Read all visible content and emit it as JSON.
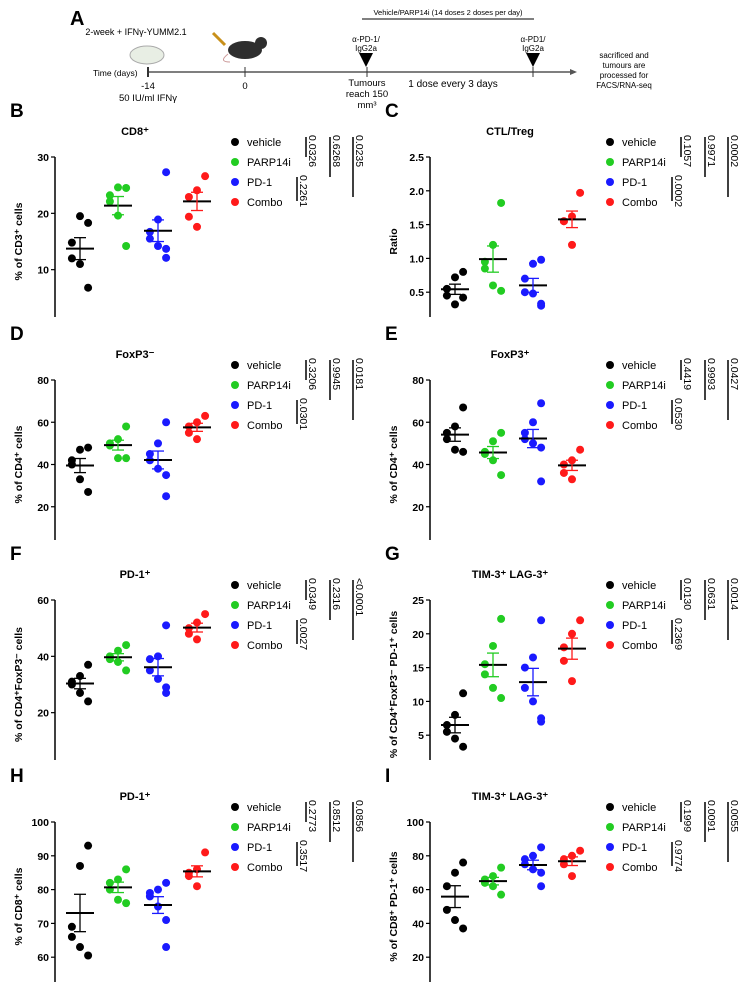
{
  "schematic": {
    "letter": "A",
    "cell_label": "2-week + IFNγ-YUMM2.1",
    "time_label": "Time (days)",
    "t_minus14": "-14",
    "t_minus14_sub": "50 IU/ml IFNγ",
    "t_zero": "0",
    "treatment_bar": "Vehicle/PARP14i (14 doses 2 doses per day)",
    "dose1": [
      "α-PD-1/",
      "IgG2a"
    ],
    "dose2": [
      "α-PD1/",
      "IgG2a"
    ],
    "tumour_label": [
      "Tumours",
      "reach 150",
      "mm³"
    ],
    "interval_label": "1 dose every 3 days",
    "end_label": [
      "sacrificed and",
      "tumours are",
      "processed for",
      "FACS/RNA-seq"
    ]
  },
  "colors": {
    "vehicle": "#000000",
    "PARP14i": "#22cc22",
    "PD-1": "#1a1aff",
    "Combo": "#ff1a1a"
  },
  "chart_data": [
    {
      "letter": "B",
      "type": "scatter",
      "title": "CD8⁺",
      "ylabel": "% of CD3⁺ cells",
      "ylim": [
        0,
        30
      ],
      "yticks": [
        "0",
        "10",
        "20",
        "30"
      ],
      "series": [
        {
          "name": "vehicle",
          "values": [
            18.3,
            19.5,
            14.8,
            12,
            11,
            6.8
          ]
        },
        {
          "name": "PARP14i",
          "values": [
            24.5,
            24.6,
            22.1,
            23.2,
            19.6,
            14.2
          ]
        },
        {
          "name": "PD-1",
          "values": [
            27.3,
            18.9,
            16.7,
            15.5,
            14.2,
            13.7,
            12.1
          ]
        },
        {
          "name": "Combo",
          "values": [
            26.6,
            24.1,
            22.9,
            19.4,
            17.6
          ]
        }
      ],
      "pvalues": {
        "vehicle_vs_PARP14i": "0.0326",
        "vehicle_vs_PD-1": "0.6268",
        "vehicle_vs_Combo": "0.0235",
        "PD-1_vs_Combo": "0.2261"
      }
    },
    {
      "letter": "C",
      "type": "scatter",
      "title": "CTL/Treg",
      "ylabel": "Ratio",
      "ylim": [
        0,
        2.5
      ],
      "yticks": [
        "0.0",
        "0.5",
        "1.0",
        "1.5",
        "2.0",
        "2.5"
      ],
      "series": [
        {
          "name": "vehicle",
          "values": [
            0.8,
            0.72,
            0.55,
            0.45,
            0.32,
            0.42
          ]
        },
        {
          "name": "PARP14i",
          "values": [
            1.82,
            1.2,
            0.95,
            0.85,
            0.6,
            0.52
          ]
        },
        {
          "name": "PD-1",
          "values": [
            0.98,
            0.92,
            0.7,
            0.5,
            0.48,
            0.33,
            0.3
          ]
        },
        {
          "name": "Combo",
          "values": [
            1.97,
            1.62,
            1.55,
            1.55,
            1.2
          ]
        }
      ],
      "pvalues": {
        "vehicle_vs_PARP14i": "0.1057",
        "vehicle_vs_PD-1": "0.9971",
        "vehicle_vs_Combo": "0.0002",
        "PD-1_vs_Combo": "0.0002"
      }
    },
    {
      "letter": "D",
      "type": "scatter",
      "title": "FoxP3⁻",
      "ylabel": "% of CD4⁺ cells",
      "ylim": [
        0,
        80
      ],
      "yticks": [
        "0",
        "20",
        "40",
        "60",
        "80"
      ],
      "series": [
        {
          "name": "vehicle",
          "values": [
            48,
            47,
            42,
            40,
            33,
            27
          ]
        },
        {
          "name": "PARP14i",
          "values": [
            58,
            52,
            49,
            50,
            43,
            43
          ]
        },
        {
          "name": "PD-1",
          "values": [
            60,
            50,
            45,
            42,
            38,
            35,
            25
          ]
        },
        {
          "name": "Combo",
          "values": [
            63,
            60,
            58,
            55,
            52
          ]
        }
      ],
      "pvalues": {
        "vehicle_vs_PARP14i": "0.3206",
        "vehicle_vs_PD-1": "0.9945",
        "vehicle_vs_Combo": "0.0181",
        "PD-1_vs_Combo": "0.0301"
      }
    },
    {
      "letter": "E",
      "type": "scatter",
      "title": "FoxP3⁺",
      "ylabel": "% of CD4⁺ cells",
      "ylim": [
        0,
        80
      ],
      "yticks": [
        "0",
        "20",
        "40",
        "60",
        "80"
      ],
      "series": [
        {
          "name": "vehicle",
          "values": [
            67,
            58,
            55,
            52,
            47,
            46
          ]
        },
        {
          "name": "PARP14i",
          "values": [
            55,
            51,
            46,
            45,
            42,
            35
          ]
        },
        {
          "name": "PD-1",
          "values": [
            69,
            60,
            55,
            52,
            50,
            48,
            32
          ]
        },
        {
          "name": "Combo",
          "values": [
            47,
            42,
            40,
            36,
            33
          ]
        }
      ],
      "pvalues": {
        "vehicle_vs_PARP14i": "0.4419",
        "vehicle_vs_PD-1": "0.9993",
        "vehicle_vs_Combo": "0.0427",
        "PD-1_vs_Combo": "0.0530"
      }
    },
    {
      "letter": "F",
      "type": "scatter",
      "title": "PD-1⁺",
      "ylabel": "% of CD4⁺FoxP3⁻ cells",
      "ylim": [
        0,
        60
      ],
      "yticks": [
        "0",
        "20",
        "40",
        "60"
      ],
      "series": [
        {
          "name": "vehicle",
          "values": [
            37,
            33,
            31,
            30,
            27,
            24
          ]
        },
        {
          "name": "PARP14i",
          "values": [
            44,
            42,
            40,
            39,
            38,
            35
          ]
        },
        {
          "name": "PD-1",
          "values": [
            51,
            40,
            39,
            35,
            32,
            29,
            27
          ]
        },
        {
          "name": "Combo",
          "values": [
            55,
            52,
            50,
            48,
            46
          ]
        }
      ],
      "pvalues": {
        "vehicle_vs_PARP14i": "0.0349",
        "vehicle_vs_PD-1": "0.2316",
        "vehicle_vs_Combo": "<0.0001",
        "PD-1_vs_Combo": "0.0027"
      }
    },
    {
      "letter": "G",
      "type": "scatter",
      "title": "TIM-3⁺ LAG-3⁺",
      "ylabel": "% of CD4⁺FoxP3⁻ PD-1⁺ cells",
      "ylim": [
        0,
        25
      ],
      "yticks": [
        "0",
        "5",
        "10",
        "15",
        "20",
        "25"
      ],
      "series": [
        {
          "name": "vehicle",
          "values": [
            11.2,
            8,
            6.5,
            5.5,
            4.5,
            3.3
          ]
        },
        {
          "name": "PARP14i",
          "values": [
            22.2,
            18.2,
            15.5,
            14,
            12,
            10.5
          ]
        },
        {
          "name": "PD-1",
          "values": [
            22,
            16.5,
            15,
            12,
            10,
            7.5,
            7
          ]
        },
        {
          "name": "Combo",
          "values": [
            22,
            20,
            18,
            16,
            13
          ]
        }
      ],
      "pvalues": {
        "vehicle_vs_PARP14i": "0.0130",
        "vehicle_vs_PD-1": "0.0631",
        "vehicle_vs_Combo": "0.0014",
        "PD-1_vs_Combo": "0.2369"
      }
    },
    {
      "letter": "H",
      "type": "scatter",
      "title": "PD-1⁺",
      "ylabel": "% of CD8⁺ cells",
      "ylim": [
        50,
        100
      ],
      "yticks": [
        "50",
        "60",
        "70",
        "80",
        "90",
        "100"
      ],
      "series": [
        {
          "name": "vehicle",
          "values": [
            93,
            87,
            69,
            66,
            63,
            60.5
          ]
        },
        {
          "name": "PARP14i",
          "values": [
            86,
            83,
            82,
            80,
            77,
            76
          ]
        },
        {
          "name": "PD-1",
          "values": [
            82,
            80,
            79,
            78,
            75,
            71,
            63
          ]
        },
        {
          "name": "Combo",
          "values": [
            91,
            86,
            85,
            84,
            81
          ]
        }
      ],
      "pvalues": {
        "vehicle_vs_PARP14i": "0.2773",
        "vehicle_vs_PD-1": "0.8512",
        "vehicle_vs_Combo": "0.0856",
        "PD-1_vs_Combo": "0.3517"
      }
    },
    {
      "letter": "I",
      "type": "scatter",
      "title": "TIM-3⁺ LAG-3⁺",
      "ylabel": "% of CD8⁺ PD-1⁺ cells",
      "ylim": [
        0,
        100
      ],
      "yticks": [
        "0",
        "20",
        "40",
        "60",
        "80",
        "100"
      ],
      "series": [
        {
          "name": "vehicle",
          "values": [
            76,
            70,
            62,
            48,
            42,
            37
          ]
        },
        {
          "name": "PARP14i",
          "values": [
            73,
            68,
            66,
            64,
            62,
            57
          ]
        },
        {
          "name": "PD-1",
          "values": [
            85,
            80,
            78,
            75,
            72,
            70,
            62
          ]
        },
        {
          "name": "Combo",
          "values": [
            83,
            80,
            78,
            75,
            68
          ]
        }
      ],
      "pvalues": {
        "vehicle_vs_PARP14i": "0.1999",
        "vehicle_vs_PD-1": "0.0091",
        "vehicle_vs_Combo": "0.0055",
        "PD-1_vs_Combo": "0.9774"
      }
    }
  ]
}
